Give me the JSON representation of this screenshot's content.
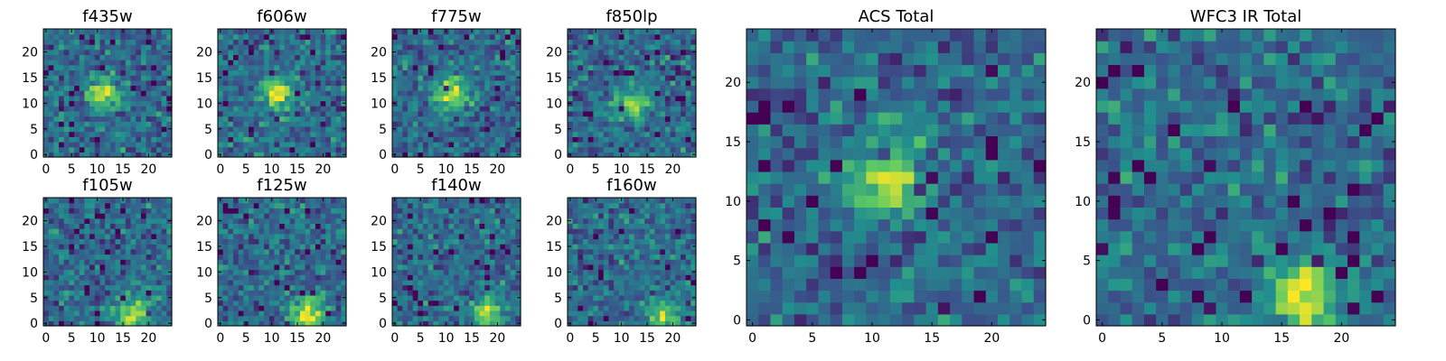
{
  "chart_data": [
    {
      "type": "heatmap",
      "title": "f435w",
      "x_ticks": [
        "0",
        "5",
        "10",
        "15",
        "20"
      ],
      "y_ticks": [
        "0",
        "5",
        "10",
        "15",
        "20"
      ],
      "xlim": [
        0,
        24
      ],
      "ylim": [
        0,
        24
      ],
      "grid_size": 25,
      "colormap": "viridis",
      "hotspot": {
        "x": 11,
        "y": 12
      },
      "grid": false
    },
    {
      "type": "heatmap",
      "title": "f606w",
      "x_ticks": [
        "0",
        "5",
        "10",
        "15",
        "20"
      ],
      "y_ticks": [
        "0",
        "5",
        "10",
        "15",
        "20"
      ],
      "xlim": [
        0,
        24
      ],
      "ylim": [
        0,
        24
      ],
      "grid_size": 25,
      "colormap": "viridis",
      "hotspot": {
        "x": 11,
        "y": 12
      },
      "grid": false
    },
    {
      "type": "heatmap",
      "title": "f775w",
      "x_ticks": [
        "0",
        "5",
        "10",
        "15",
        "20"
      ],
      "y_ticks": [
        "0",
        "5",
        "10",
        "15",
        "20"
      ],
      "xlim": [
        0,
        24
      ],
      "ylim": [
        0,
        24
      ],
      "grid_size": 25,
      "colormap": "viridis",
      "hotspot": {
        "x": 11,
        "y": 12
      },
      "grid": false
    },
    {
      "type": "heatmap",
      "title": "f850lp",
      "x_ticks": [
        "0",
        "5",
        "10",
        "15",
        "20"
      ],
      "y_ticks": [
        "0",
        "5",
        "10",
        "15",
        "20"
      ],
      "xlim": [
        0,
        24
      ],
      "ylim": [
        0,
        24
      ],
      "grid_size": 25,
      "colormap": "viridis",
      "hotspot": {
        "x": 12,
        "y": 10
      },
      "grid": false
    },
    {
      "type": "heatmap",
      "title": "f105w",
      "x_ticks": [
        "0",
        "5",
        "10",
        "15",
        "20"
      ],
      "y_ticks": [
        "0",
        "5",
        "10",
        "15",
        "20"
      ],
      "xlim": [
        0,
        24
      ],
      "ylim": [
        0,
        24
      ],
      "grid_size": 25,
      "colormap": "viridis",
      "hotspot": {
        "x": 17,
        "y": 2
      },
      "grid": false
    },
    {
      "type": "heatmap",
      "title": "f125w",
      "x_ticks": [
        "0",
        "5",
        "10",
        "15",
        "20"
      ],
      "y_ticks": [
        "0",
        "5",
        "10",
        "15",
        "20"
      ],
      "xlim": [
        0,
        24
      ],
      "ylim": [
        0,
        24
      ],
      "grid_size": 25,
      "colormap": "viridis",
      "hotspot": {
        "x": 17,
        "y": 2
      },
      "grid": false
    },
    {
      "type": "heatmap",
      "title": "f140w",
      "x_ticks": [
        "0",
        "5",
        "10",
        "15",
        "20"
      ],
      "y_ticks": [
        "0",
        "5",
        "10",
        "15",
        "20"
      ],
      "xlim": [
        0,
        24
      ],
      "ylim": [
        0,
        24
      ],
      "grid_size": 25,
      "colormap": "viridis",
      "hotspot": {
        "x": 18,
        "y": 2
      },
      "grid": false
    },
    {
      "type": "heatmap",
      "title": "f160w",
      "x_ticks": [
        "0",
        "5",
        "10",
        "15",
        "20"
      ],
      "y_ticks": [
        "0",
        "5",
        "10",
        "15",
        "20"
      ],
      "xlim": [
        0,
        24
      ],
      "ylim": [
        0,
        24
      ],
      "grid_size": 25,
      "colormap": "viridis",
      "hotspot": {
        "x": 18,
        "y": 1
      },
      "grid": false
    },
    {
      "type": "heatmap",
      "title": "ACS Total",
      "x_ticks": [
        "0",
        "5",
        "10",
        "15",
        "20"
      ],
      "y_ticks": [
        "0",
        "5",
        "10",
        "15",
        "20"
      ],
      "xlim": [
        0,
        24
      ],
      "ylim": [
        0,
        24
      ],
      "grid_size": 25,
      "colormap": "viridis",
      "hotspot": {
        "x": 11,
        "y": 12
      },
      "grid": false
    },
    {
      "type": "heatmap",
      "title": "WFC3 IR Total",
      "x_ticks": [
        "0",
        "5",
        "10",
        "15",
        "20"
      ],
      "y_ticks": [
        "0",
        "5",
        "10",
        "15",
        "20"
      ],
      "xlim": [
        0,
        24
      ],
      "ylim": [
        0,
        24
      ],
      "grid_size": 25,
      "colormap": "viridis",
      "hotspot": {
        "x": 17,
        "y": 2
      },
      "grid": false
    }
  ],
  "colors": {
    "colormap_stops": [
      "#440154",
      "#3b528b",
      "#21908d",
      "#5dc963",
      "#fde725"
    ],
    "axes": "#000000",
    "background": "#ffffff"
  }
}
